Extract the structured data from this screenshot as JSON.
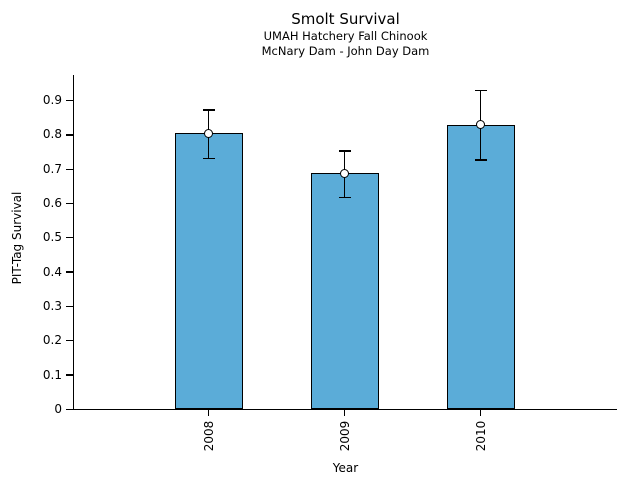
{
  "figure": {
    "title": "Smolt Survival",
    "subtitle_line1": "UMAH Hatchery Fall Chinook",
    "subtitle_line2": "McNary Dam - John Day Dam"
  },
  "chart_data": {
    "type": "bar",
    "title": "Smolt Survival",
    "subtitle": [
      "UMAH Hatchery Fall Chinook",
      "McNary Dam - John Day Dam"
    ],
    "xlabel": "Year",
    "ylabel": "PIT-Tag Survival",
    "categories": [
      "2008",
      "2009",
      "2010"
    ],
    "values": [
      0.805,
      0.688,
      0.829
    ],
    "error_low": [
      0.732,
      0.618,
      0.727
    ],
    "error_high": [
      0.873,
      0.753,
      0.929
    ],
    "yticks": [
      0,
      0.1,
      0.2,
      0.3,
      0.4,
      0.5,
      0.6,
      0.7,
      0.8,
      0.9
    ],
    "ytick_labels": [
      "0",
      "0.1",
      "0.2",
      "0.3",
      "0.4",
      "0.5",
      "0.6",
      "0.7",
      "0.8",
      "0.9"
    ],
    "ylim": [
      0,
      0.975
    ],
    "grid": false,
    "legend": false,
    "bar_color": "#5BACD8",
    "bar_edge_color": "#000000",
    "error_bar_color": "#000000",
    "marker": "open-circle",
    "marker_face_color": "#FFFFFF",
    "background_color": "#FFFFFF",
    "text_color": "#000000"
  }
}
